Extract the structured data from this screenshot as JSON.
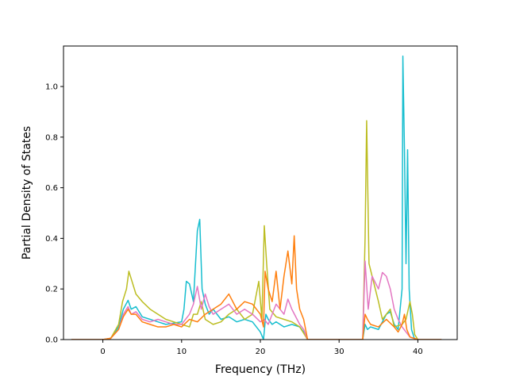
{
  "chart_data": {
    "type": "line",
    "title": "",
    "xlabel": "Frequency (THz)",
    "ylabel": "Partial Density of States",
    "xlim": [
      -5,
      45
    ],
    "ylim": [
      0,
      1.16
    ],
    "xticks": [
      0,
      10,
      20,
      30,
      40
    ],
    "yticks": [
      0.0,
      0.2,
      0.4,
      0.6,
      0.8,
      1.0
    ],
    "xtick_labels": [
      "0",
      "10",
      "20",
      "30",
      "40"
    ],
    "ytick_labels": [
      "0.0",
      "0.2",
      "0.4",
      "0.6",
      "0.8",
      "1.0"
    ],
    "grid": false,
    "legend": "none",
    "series": [
      {
        "color": "#17becf",
        "x": [
          -4,
          0,
          1,
          2,
          2.6,
          3.2,
          3.6,
          4.2,
          5,
          6,
          7,
          8,
          9,
          10,
          10.3,
          10.6,
          11,
          11.5,
          12,
          12.3,
          12.6,
          13,
          13.5,
          14,
          15,
          16,
          17,
          18,
          19,
          20,
          20.4,
          20.7,
          21,
          21.5,
          22,
          23,
          24,
          25,
          25.5,
          26,
          27,
          30,
          33,
          33.3,
          33.6,
          34,
          35,
          36,
          36.5,
          37,
          37.5,
          38,
          38.1,
          38.3,
          38.5,
          38.7,
          38.9,
          39.2,
          39.6,
          40,
          43
        ],
        "y": [
          0,
          0,
          0.005,
          0.05,
          0.12,
          0.155,
          0.12,
          0.13,
          0.09,
          0.08,
          0.07,
          0.06,
          0.065,
          0.07,
          0.12,
          0.23,
          0.22,
          0.15,
          0.43,
          0.475,
          0.2,
          0.14,
          0.1,
          0.12,
          0.08,
          0.09,
          0.07,
          0.08,
          0.07,
          0.03,
          0.0,
          0.1,
          0.08,
          0.06,
          0.07,
          0.05,
          0.06,
          0.05,
          0.03,
          0.0,
          0,
          0,
          0,
          0.06,
          0.04,
          0.05,
          0.04,
          0.1,
          0.11,
          0.06,
          0.04,
          0.2,
          1.12,
          0.75,
          0.3,
          0.75,
          0.2,
          0.04,
          0.0,
          0,
          0
        ]
      },
      {
        "color": "#bcbd22",
        "x": [
          -4,
          0,
          1,
          2,
          2.5,
          3,
          3.3,
          3.6,
          4.2,
          5,
          6,
          7,
          8,
          9,
          10,
          11,
          11.5,
          12,
          12.5,
          13,
          14,
          15,
          16,
          17,
          18,
          19,
          19.8,
          20.2,
          20.5,
          20.8,
          21.2,
          22,
          23,
          24,
          25,
          26,
          30,
          33,
          33.3,
          33.5,
          33.8,
          34.2,
          35,
          35.5,
          36,
          36.5,
          37,
          38,
          38.5,
          39,
          39.3,
          39.6,
          40,
          43
        ],
        "y": [
          0,
          0,
          0.005,
          0.06,
          0.15,
          0.2,
          0.27,
          0.24,
          0.18,
          0.15,
          0.12,
          0.1,
          0.08,
          0.07,
          0.06,
          0.05,
          0.1,
          0.1,
          0.15,
          0.08,
          0.06,
          0.07,
          0.1,
          0.12,
          0.08,
          0.1,
          0.23,
          0.08,
          0.45,
          0.3,
          0.12,
          0.09,
          0.08,
          0.07,
          0.05,
          0.0,
          0,
          0,
          0.4,
          0.865,
          0.3,
          0.25,
          0.15,
          0.08,
          0.1,
          0.12,
          0.05,
          0.06,
          0.08,
          0.15,
          0.1,
          0.02,
          0,
          0
        ]
      },
      {
        "color": "#e377c2",
        "x": [
          -4,
          0,
          1,
          2,
          2.6,
          3.2,
          3.6,
          4.2,
          5,
          6,
          7,
          8,
          9,
          10,
          11,
          11.5,
          12,
          12.5,
          13,
          13.5,
          14,
          15,
          16,
          17,
          18,
          19,
          20,
          20.5,
          21,
          21.5,
          22,
          23,
          23.5,
          24,
          25,
          25.5,
          26,
          30,
          33,
          33.3,
          33.7,
          34.2,
          35,
          35.5,
          36,
          36.5,
          37,
          37.5,
          38,
          38.5,
          39,
          40,
          43
        ],
        "y": [
          0,
          0,
          0.005,
          0.04,
          0.1,
          0.13,
          0.1,
          0.11,
          0.08,
          0.07,
          0.08,
          0.07,
          0.06,
          0.06,
          0.1,
          0.14,
          0.21,
          0.12,
          0.18,
          0.13,
          0.1,
          0.12,
          0.14,
          0.1,
          0.12,
          0.1,
          0.07,
          0.08,
          0.06,
          0.1,
          0.14,
          0.1,
          0.16,
          0.12,
          0.06,
          0.04,
          0.0,
          0,
          0,
          0.31,
          0.12,
          0.25,
          0.2,
          0.265,
          0.25,
          0.2,
          0.12,
          0.08,
          0.05,
          0.03,
          0.01,
          0,
          0
        ]
      },
      {
        "color": "#ff7f0e",
        "x": [
          -4,
          0,
          1,
          2,
          2.6,
          3.2,
          3.6,
          4.2,
          5,
          6,
          7,
          8,
          9,
          10,
          11,
          12,
          13,
          14,
          15,
          16,
          17,
          18,
          19,
          20,
          20.4,
          20.6,
          21,
          21.5,
          22,
          22.5,
          23,
          23.5,
          24,
          24.3,
          24.6,
          25,
          25.5,
          26,
          30,
          33,
          33.3,
          33.6,
          34,
          35,
          36,
          37,
          37.5,
          38,
          38.3,
          38.6,
          39,
          40,
          43
        ],
        "y": [
          0,
          0,
          0.005,
          0.04,
          0.09,
          0.12,
          0.1,
          0.1,
          0.07,
          0.06,
          0.05,
          0.05,
          0.06,
          0.05,
          0.08,
          0.07,
          0.1,
          0.12,
          0.14,
          0.18,
          0.12,
          0.15,
          0.14,
          0.1,
          0.05,
          0.27,
          0.2,
          0.15,
          0.27,
          0.12,
          0.25,
          0.35,
          0.22,
          0.41,
          0.2,
          0.12,
          0.08,
          0.0,
          0,
          0,
          0.1,
          0.08,
          0.06,
          0.05,
          0.08,
          0.05,
          0.03,
          0.06,
          0.1,
          0.04,
          0.01,
          0,
          0
        ]
      }
    ]
  }
}
